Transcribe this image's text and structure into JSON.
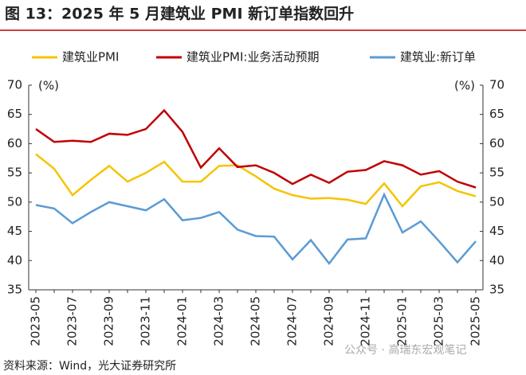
{
  "chart_data": {
    "type": "line",
    "title": "图 13：2025 年 5 月建筑业 PMI 新订单指数回升",
    "y_unit_left": "(%)",
    "y_unit_right": "(%)",
    "source": "资料来源：Wind，光大证券研究所",
    "watermark": "公众号 · 高瑞东宏观笔记",
    "categories": [
      "2023-05",
      null,
      "2023-07",
      null,
      "2023-09",
      null,
      "2023-11",
      null,
      "2024-01",
      null,
      "2024-03",
      null,
      "2024-05",
      null,
      "2024-07",
      null,
      "2024-09",
      null,
      "2024-11",
      null,
      "2025-01",
      null,
      "2025-03",
      null,
      "2025-05"
    ],
    "series": [
      {
        "name": "建筑业PMI",
        "color": "#f5c400",
        "values": [
          58.2,
          55.7,
          51.2,
          53.8,
          56.2,
          53.5,
          55.0,
          56.9,
          53.5,
          53.5,
          56.2,
          56.3,
          54.4,
          52.3,
          51.2,
          50.6,
          50.7,
          50.4,
          49.7,
          53.2,
          49.3,
          52.7,
          53.4,
          51.9,
          51.0
        ]
      },
      {
        "name": "建筑业PMI:业务活动预期",
        "color": "#c00000",
        "values": [
          62.5,
          60.3,
          60.5,
          60.3,
          61.7,
          61.5,
          62.5,
          65.7,
          62.0,
          55.9,
          59.2,
          56.0,
          56.3,
          55.0,
          53.1,
          54.7,
          53.3,
          55.2,
          55.5,
          57.0,
          56.3,
          54.7,
          55.3,
          53.5,
          52.5
        ]
      },
      {
        "name": "建筑业:新订单",
        "color": "#5b9bd5",
        "values": [
          49.5,
          48.9,
          46.4,
          48.3,
          50.0,
          49.3,
          48.6,
          50.5,
          46.9,
          47.3,
          48.3,
          45.3,
          44.2,
          44.1,
          40.2,
          43.5,
          39.5,
          43.6,
          43.8,
          51.3,
          44.8,
          46.7,
          43.3,
          39.7,
          43.3
        ]
      }
    ],
    "ylim": [
      35,
      70
    ],
    "yticks": [
      35,
      40,
      45,
      50,
      55,
      60,
      65,
      70
    ],
    "y2lim": [
      35,
      70
    ],
    "y2ticks": [
      35,
      40,
      45,
      50,
      55,
      60,
      65,
      70
    ]
  }
}
